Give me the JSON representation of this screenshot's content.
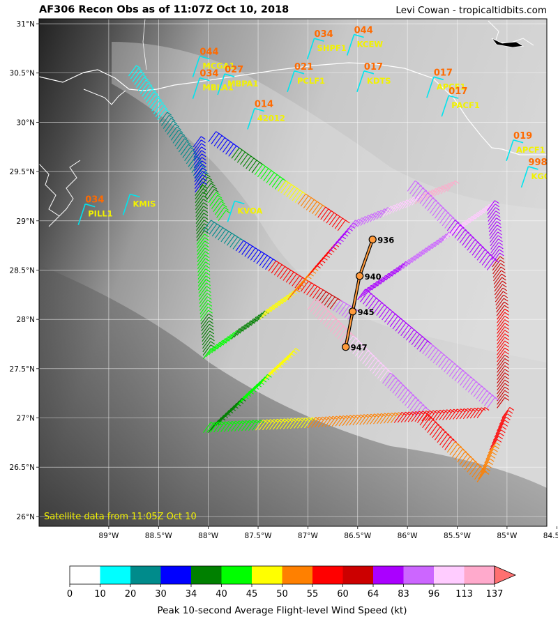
{
  "header": {
    "title": "AF306 Recon Obs as of 11:07Z Oct 10, 2018",
    "credit": "Levi Cowan - tropicaltidbits.com"
  },
  "map": {
    "lon_range": [
      -89.7,
      -84.6
    ],
    "lat_range": [
      25.9,
      31.05
    ],
    "lon_ticks": [
      {
        "v": -89,
        "label": "89°W"
      },
      {
        "v": -88.5,
        "label": "88.5°W"
      },
      {
        "v": -88,
        "label": "88°W"
      },
      {
        "v": -87.5,
        "label": "87.5°W"
      },
      {
        "v": -87,
        "label": "87°W"
      },
      {
        "v": -86.5,
        "label": "86.5°W"
      },
      {
        "v": -86,
        "label": "86°W"
      },
      {
        "v": -85.5,
        "label": "85.5°W"
      },
      {
        "v": -85,
        "label": "85°W"
      },
      {
        "v": -84.5,
        "label": "84.5°W"
      }
    ],
    "lat_ticks": [
      {
        "v": 31,
        "label": "31°N"
      },
      {
        "v": 30.5,
        "label": "30.5°N"
      },
      {
        "v": 30,
        "label": "30°N"
      },
      {
        "v": 29.5,
        "label": "29.5°N"
      },
      {
        "v": 29,
        "label": "29°N"
      },
      {
        "v": 28.5,
        "label": "28.5°N"
      },
      {
        "v": 28,
        "label": "28°N"
      },
      {
        "v": 27.5,
        "label": "27.5°N"
      },
      {
        "v": 27,
        "label": "27°N"
      },
      {
        "v": 26.5,
        "label": "26.5°N"
      },
      {
        "v": 26,
        "label": "26°N"
      }
    ],
    "satellite_note": "Satellite data from 11:05Z Oct 10",
    "colors": {
      "coast": "#ffffff",
      "grid": "#ffffff",
      "track": "#000000",
      "track_inner": "#ff9a3c"
    },
    "stations": [
      {
        "code": "MCGA1",
        "value": "044",
        "lon": -88.1,
        "lat": 30.6
      },
      {
        "code": "MBLA1",
        "value": "034",
        "lon": -88.1,
        "lat": 30.38
      },
      {
        "code": "MBPA1",
        "value": "027",
        "lon": -87.85,
        "lat": 30.42
      },
      {
        "code": "42012",
        "value": "014",
        "lon": -87.55,
        "lat": 30.07
      },
      {
        "code": "PCLF1",
        "value": "021",
        "lon": -87.15,
        "lat": 30.45
      },
      {
        "code": "SHPF1",
        "value": "034",
        "lon": -86.95,
        "lat": 30.78
      },
      {
        "code": "KCEW",
        "value": "044",
        "lon": -86.55,
        "lat": 30.82
      },
      {
        "code": "KDTS",
        "value": "017",
        "lon": -86.45,
        "lat": 30.45
      },
      {
        "code": "APCF1",
        "value": "017",
        "lon": -85.75,
        "lat": 30.39
      },
      {
        "code": "PACF1",
        "value": "017",
        "lon": -85.6,
        "lat": 30.2
      },
      {
        "code": "APCF1",
        "value": "019",
        "lon": -84.95,
        "lat": 29.75
      },
      {
        "code": "KGOF1",
        "value": "998",
        "lon": -84.8,
        "lat": 29.48
      },
      {
        "code": "KMIS",
        "value": "",
        "lon": -88.8,
        "lat": 29.2
      },
      {
        "code": "PILL1",
        "value": "034",
        "lon": -89.25,
        "lat": 29.1
      },
      {
        "code": "KVOA",
        "value": "",
        "lon": -87.75,
        "lat": 29.13
      }
    ],
    "center_fixes": [
      {
        "label": "936",
        "lon": -86.35,
        "lat": 28.81
      },
      {
        "label": "940",
        "lon": -86.48,
        "lat": 28.44
      },
      {
        "label": "945",
        "lon": -86.55,
        "lat": 28.08
      },
      {
        "label": "947",
        "lon": -86.62,
        "lat": 27.72
      }
    ]
  },
  "colorbar": {
    "label": "Peak 10-second Average Flight-level Wind Speed (kt)",
    "ticks": [
      "0",
      "10",
      "20",
      "30",
      "34",
      "40",
      "45",
      "50",
      "55",
      "60",
      "64",
      "83",
      "96",
      "113",
      "137"
    ],
    "colors": [
      "#ffffff",
      "#00ffff",
      "#008b8b",
      "#0000ff",
      "#008000",
      "#00ff00",
      "#ffff00",
      "#ff8000",
      "#ff0000",
      "#cc0000",
      "#aa00ff",
      "#cc66ff",
      "#ffccff",
      "#ffaacc"
    ],
    "extend_color": "#ff7070"
  }
}
